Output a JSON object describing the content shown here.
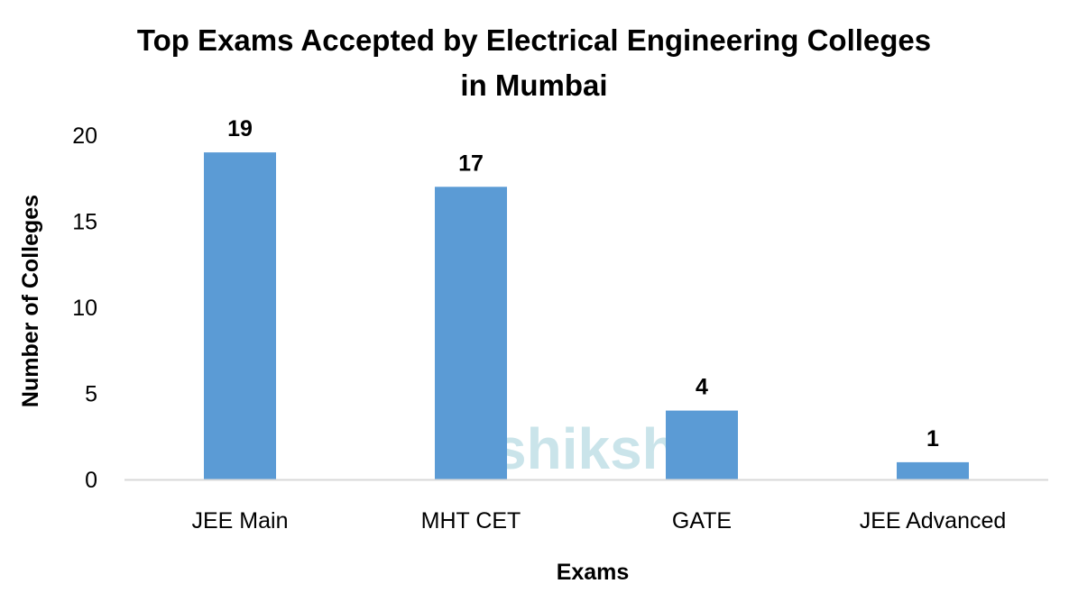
{
  "chart_data": {
    "type": "bar",
    "title_lines": [
      "Top Exams Accepted by Electrical Engineering Colleges",
      "in Mumbai"
    ],
    "xlabel": "Exams",
    "ylabel": "Number of Colleges",
    "categories": [
      "JEE Main",
      "MHT CET",
      "GATE",
      "JEE Advanced"
    ],
    "values": [
      19,
      17,
      4,
      1
    ],
    "ylim": [
      0,
      20
    ],
    "yticks": [
      0,
      5,
      10,
      15,
      20
    ],
    "grid": false,
    "legend": "none",
    "bar_color": "#5B9BD5",
    "data_labels": true
  },
  "watermark": {
    "text": "shiksha",
    "color": "#B9DCE3"
  }
}
